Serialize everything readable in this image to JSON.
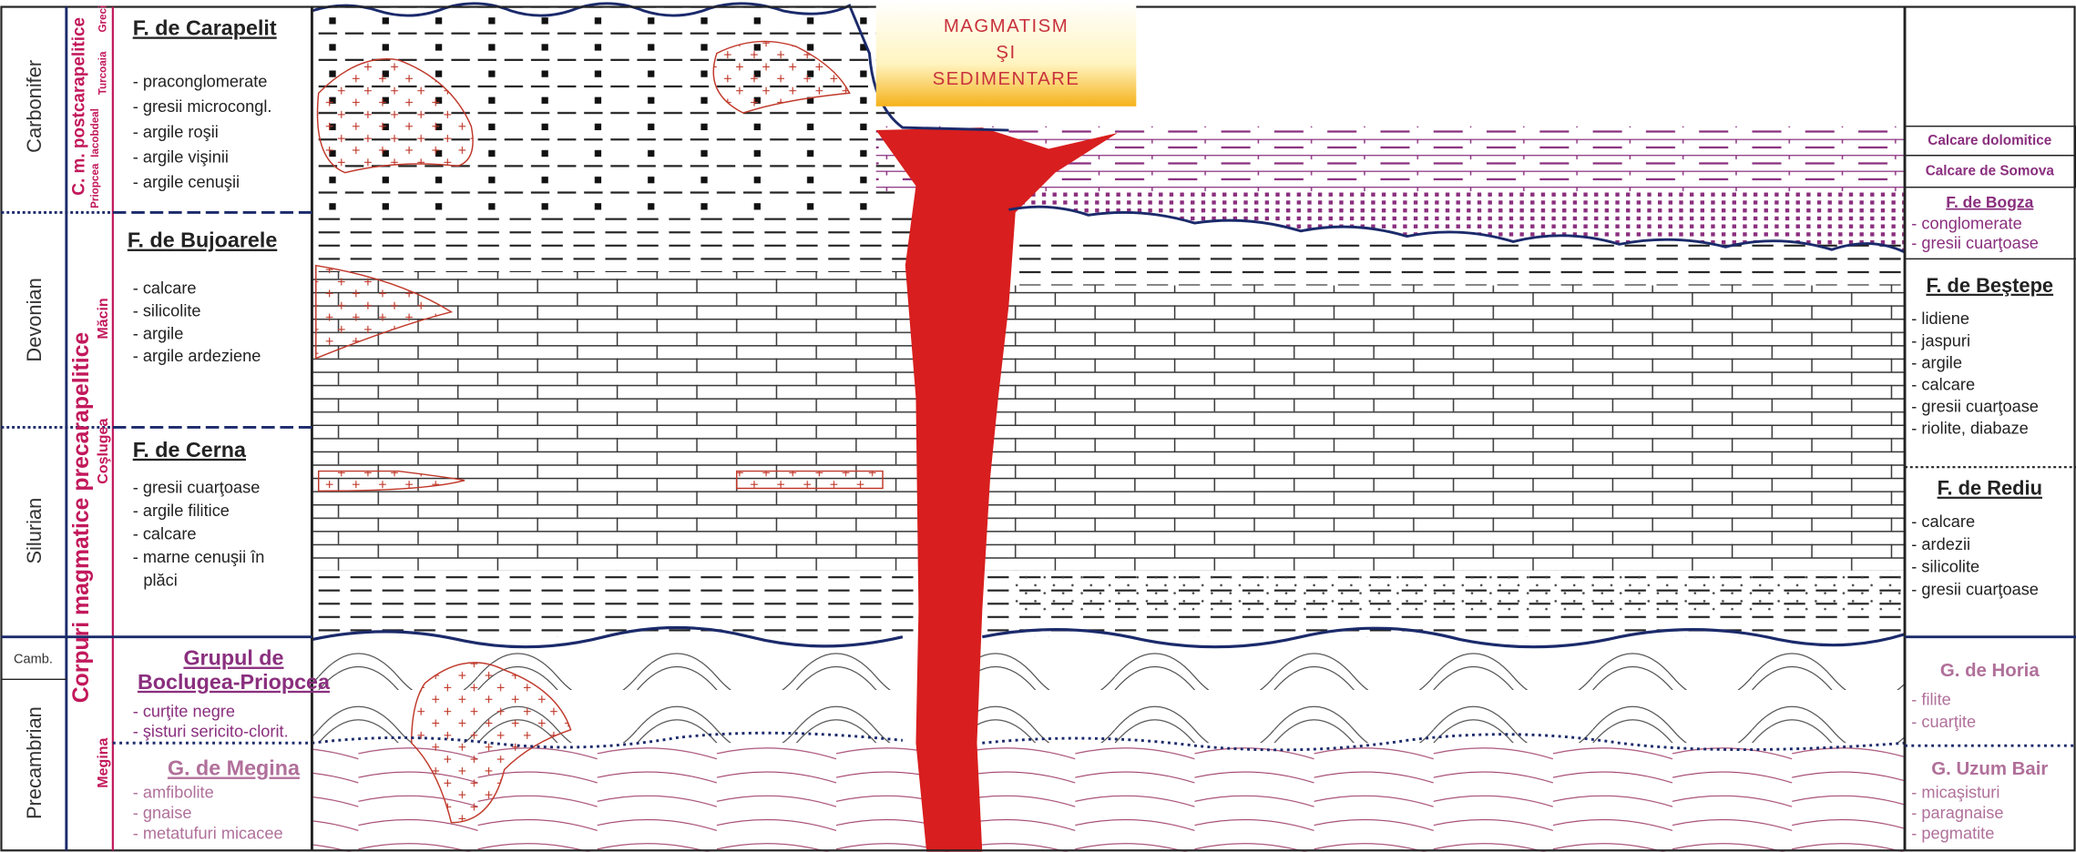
{
  "header": {
    "title_lines": [
      "MAGMATISM",
      "ŞI",
      "SEDIMENTARE"
    ]
  },
  "periods": [
    "Carbonifer",
    "Devonian",
    "Silurian",
    "Camb.",
    "Precambrian"
  ],
  "magmatic": {
    "main": "Corpuri magmatice precarapelitice",
    "post": "C. m. postcarapelitice",
    "sub": [
      "Priopcea",
      "Iacobdeal",
      "Turcoaia",
      "Greci",
      "Măcin",
      "Coşlugea",
      "Megina"
    ]
  },
  "left_units": [
    {
      "name": [
        "F. de Carapelit"
      ],
      "items": [
        "- praconglomerate",
        "- gresii microcongl.",
        "- argile roşii",
        "- argile vişinii",
        "- argile cenuşii"
      ]
    },
    {
      "name": [
        "F. de Bujoarele"
      ],
      "items": [
        "- calcare",
        "- silicolite",
        "- argile",
        "- argile ardeziene"
      ]
    },
    {
      "name": [
        "F. de Cerna"
      ],
      "items": [
        "- gresii cuarţoase",
        "- argile filitice",
        "- calcare",
        "- marne cenuşii în",
        "plăci"
      ]
    },
    {
      "name": [
        "Grupul de",
        "Boclugea-Priopcea"
      ],
      "items": [
        "- curţite negre",
        "- şisturi sericito-clorit."
      ]
    },
    {
      "name": [
        "G. de Megina"
      ],
      "items": [
        "- amfibolite",
        "- gnaise",
        "- metatufuri micacee"
      ]
    }
  ],
  "right_units": [
    {
      "name": [
        "Calcare dolomitice"
      ],
      "items": []
    },
    {
      "name": [
        "Calcare de Somova"
      ],
      "items": []
    },
    {
      "name": [
        "F. de Bogza"
      ],
      "items": [
        "- conglomerate",
        "- gresii cuarţoase"
      ]
    },
    {
      "name": [
        "F. de Beştepe"
      ],
      "items": [
        "- lidiene",
        "- jaspuri",
        "- argile",
        "- calcare",
        "- gresii cuarţoase",
        "- riolite, diabaze"
      ]
    },
    {
      "name": [
        "F. de Rediu"
      ],
      "items": [
        "- calcare",
        "- ardezii",
        "- silicolite",
        "- gresii cuarţoase"
      ]
    },
    {
      "name": [
        "G. de Horia"
      ],
      "items": [
        "- filite",
        "- cuarţite"
      ]
    },
    {
      "name": [
        "G. Uzum Bair"
      ],
      "items": [
        "- micaşisturi",
        "- paragnaise",
        "- pegmatite"
      ]
    }
  ]
}
